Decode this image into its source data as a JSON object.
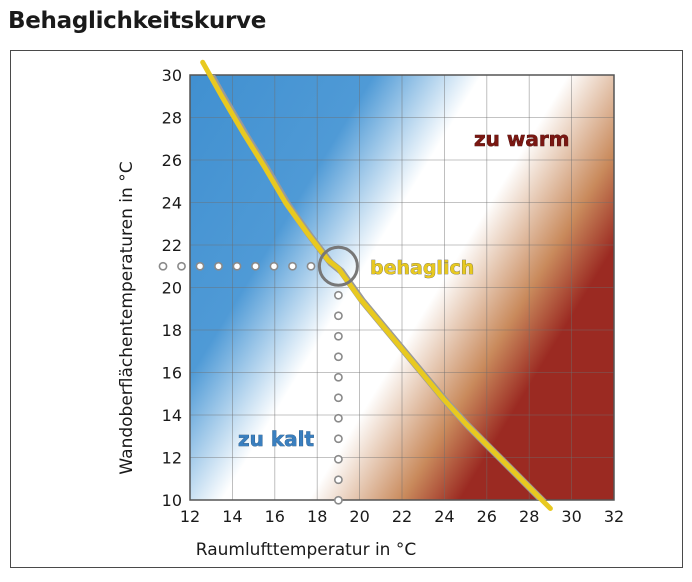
{
  "title": "Behaglichkeitskurve",
  "chart_data": {
    "type": "line",
    "xlabel": "Raumlufttemperatur in °C",
    "ylabel": "Wandoberflächentemperaturen in °C",
    "xlim": [
      12,
      32
    ],
    "ylim": [
      10,
      30
    ],
    "xticks": [
      12,
      14,
      16,
      18,
      20,
      22,
      24,
      26,
      28,
      30,
      32
    ],
    "yticks": [
      10,
      12,
      14,
      16,
      18,
      20,
      22,
      24,
      26,
      28,
      30
    ],
    "grid": true,
    "series": [
      {
        "name": "behaglich",
        "color": "#e8c920",
        "x": [
          12.6,
          13.5,
          14.5,
          15.5,
          16.5,
          17.5,
          18.5,
          19.0,
          20.0,
          21.0,
          22.0,
          23.0,
          24.0,
          25.0,
          26.0,
          27.0,
          28.0,
          29.0
        ],
        "y": [
          30.6,
          29.0,
          27.3,
          25.7,
          24.0,
          22.6,
          21.3,
          20.9,
          19.5,
          18.3,
          17.1,
          15.9,
          14.7,
          13.6,
          12.6,
          11.6,
          10.6,
          9.6
        ]
      }
    ],
    "marker": {
      "x": 19.0,
      "y": 21.0,
      "label": "behaglich",
      "label_color": "#e8c920"
    },
    "guides": {
      "x": 19.0,
      "y": 21.0
    },
    "regions": [
      {
        "label": "zu warm",
        "color": "#9b2a22"
      },
      {
        "label": "zu kalt",
        "color": "#3f8fd0"
      }
    ]
  }
}
